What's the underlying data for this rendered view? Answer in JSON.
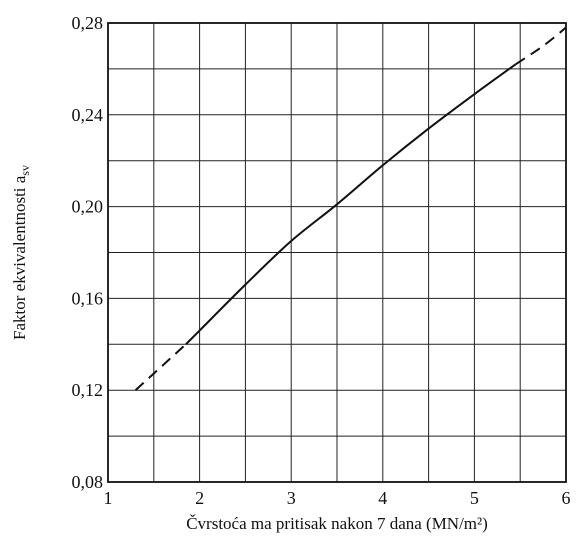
{
  "chart_data": {
    "type": "line",
    "title": "",
    "xlabel": "Čvrstoća ma pritisak nakon 7 dana (MN/m²)",
    "ylabel": "Faktor ekvivalentnosti a",
    "ylabel_subscript": "sv",
    "xlim": [
      1,
      6
    ],
    "ylim": [
      0.08,
      0.28
    ],
    "x_ticks": [
      1,
      2,
      3,
      4,
      5,
      6
    ],
    "x_tick_labels": [
      "1",
      "2",
      "3",
      "4",
      "5",
      "6"
    ],
    "y_ticks": [
      0.08,
      0.12,
      0.16,
      0.2,
      0.24,
      0.28
    ],
    "y_tick_labels": [
      "0,08",
      "0,12",
      "0,16",
      "0,20",
      "0,24",
      "0,28"
    ],
    "x_minor_step": 0.5,
    "y_minor_step": 0.02,
    "grid": true,
    "series": [
      {
        "line_style": "dashed",
        "x": [
          1.3,
          1.85
        ],
        "y": [
          0.12,
          0.14
        ]
      },
      {
        "line_style": "solid",
        "x": [
          1.85,
          2.0,
          2.5,
          3.0,
          3.5,
          4.0,
          4.5,
          5.0,
          5.45
        ],
        "y": [
          0.14,
          0.146,
          0.166,
          0.185,
          0.201,
          0.218,
          0.234,
          0.249,
          0.262
        ]
      },
      {
        "line_style": "dashed",
        "x": [
          5.45,
          5.75,
          6.0
        ],
        "y": [
          0.262,
          0.27,
          0.278
        ]
      }
    ]
  }
}
